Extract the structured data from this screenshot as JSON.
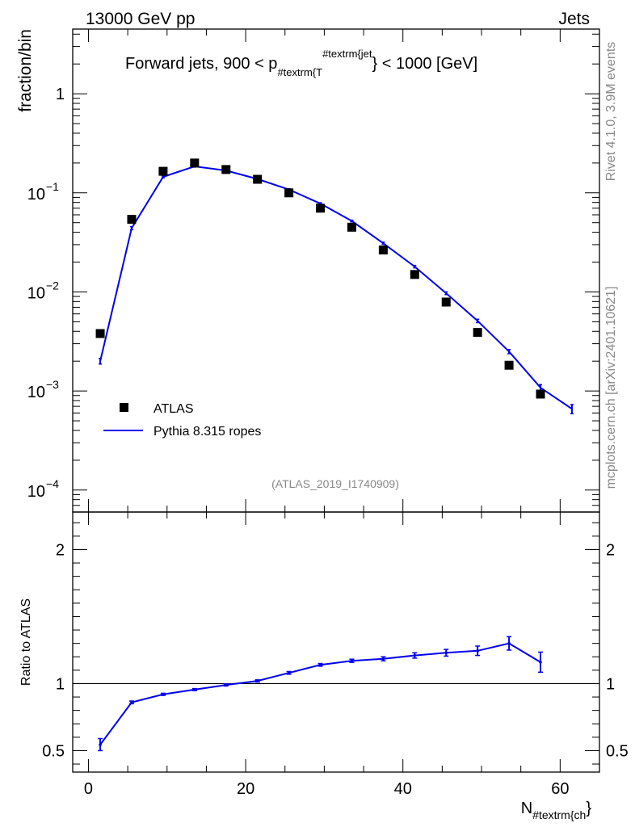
{
  "header": {
    "left": "13000 GeV pp",
    "right": "Jets"
  },
  "side_labels": {
    "rivet": "Rivet 4.1.0,  3.9M events",
    "mcplots": "mcplots.cern.ch [arXiv:2401.10621]"
  },
  "chart_data": [
    {
      "type": "scatter",
      "panel": "main",
      "title": "Forward jets, 900 < p_{#textrm{T}}^{#textrm{jet}} < 1000 [GeV]",
      "title_parts": {
        "prefix": "Forward jets, 900 < p",
        "sub": "#textrm{T",
        "sup": "#textrm{jet",
        "suffix": "} < 1000 [GeV]"
      },
      "ylabel": "fraction/bin",
      "yscale": "log",
      "ylim": [
        6e-05,
        4.5
      ],
      "xlim": [
        -2,
        65
      ],
      "y_ticks": [
        {
          "value": 1,
          "base": "1",
          "exp": ""
        },
        {
          "value": 0.1,
          "base": "10",
          "exp": "−1"
        },
        {
          "value": 0.01,
          "base": "10",
          "exp": "−2"
        },
        {
          "value": 0.001,
          "base": "10",
          "exp": "−3"
        },
        {
          "value": 0.0001,
          "base": "10",
          "exp": "−4"
        }
      ],
      "watermark": "(ATLAS_2019_I1740909)",
      "legend": [
        "ATLAS",
        "Pythia 8.315 ropes"
      ],
      "series": [
        {
          "name": "ATLAS",
          "style": "markers",
          "color": "#000000",
          "x": [
            1.5,
            5.5,
            9.5,
            13.5,
            17.5,
            21.5,
            25.5,
            29.5,
            33.5,
            37.5,
            41.5,
            45.5,
            49.5,
            53.5,
            57.5
          ],
          "y": [
            0.0038,
            0.054,
            0.165,
            0.2,
            0.172,
            0.137,
            0.1,
            0.07,
            0.045,
            0.0265,
            0.015,
            0.0079,
            0.0039,
            0.00182,
            0.00093
          ]
        },
        {
          "name": "Pythia 8.315 ropes",
          "style": "line",
          "color": "#0000ee",
          "x": [
            1.5,
            5.5,
            9.5,
            13.5,
            17.5,
            21.5,
            25.5,
            29.5,
            33.5,
            37.5,
            41.5,
            45.5,
            49.5,
            53.5,
            57.5,
            61.5
          ],
          "y": [
            0.002,
            0.044,
            0.145,
            0.185,
            0.168,
            0.138,
            0.108,
            0.078,
            0.052,
            0.031,
            0.018,
            0.0097,
            0.0051,
            0.0025,
            0.00108,
            0.00066
          ],
          "err": [
            0.00013,
            0.0015,
            0.003,
            0.003,
            0.003,
            0.002,
            0.002,
            0.0015,
            0.001,
            0.0008,
            0.0005,
            0.0003,
            0.0002,
            0.00012,
            8e-05,
            7e-05
          ]
        }
      ]
    },
    {
      "type": "line",
      "panel": "ratio",
      "ylabel": "Ratio to ATLAS",
      "xlabel": "N_{#textrm{ch}}",
      "xlabel_parts": {
        "main": "N",
        "sub": "#textrm{ch"
      },
      "xlim": [
        -2,
        65
      ],
      "ylim": [
        0.34,
        2.28
      ],
      "x_ticks": [
        0,
        20,
        40,
        60
      ],
      "y_ticks": [
        "0.5",
        "1",
        "2"
      ],
      "y_tick_values": [
        0.5,
        1,
        2
      ],
      "reference": 1,
      "series": [
        {
          "name": "Pythia 8.315 ropes",
          "color": "#0000ee",
          "x": [
            1.5,
            5.5,
            9.5,
            13.5,
            17.5,
            21.5,
            25.5,
            29.5,
            33.5,
            37.5,
            41.5,
            45.5,
            49.5,
            53.5,
            57.5
          ],
          "y": [
            0.545,
            0.86,
            0.92,
            0.955,
            0.99,
            1.02,
            1.08,
            1.14,
            1.17,
            1.185,
            1.21,
            1.23,
            1.245,
            1.3,
            1.16
          ],
          "err": [
            0.045,
            0.01,
            0.008,
            0.008,
            0.008,
            0.008,
            0.01,
            0.01,
            0.012,
            0.015,
            0.02,
            0.025,
            0.035,
            0.05,
            0.075
          ]
        }
      ]
    }
  ]
}
